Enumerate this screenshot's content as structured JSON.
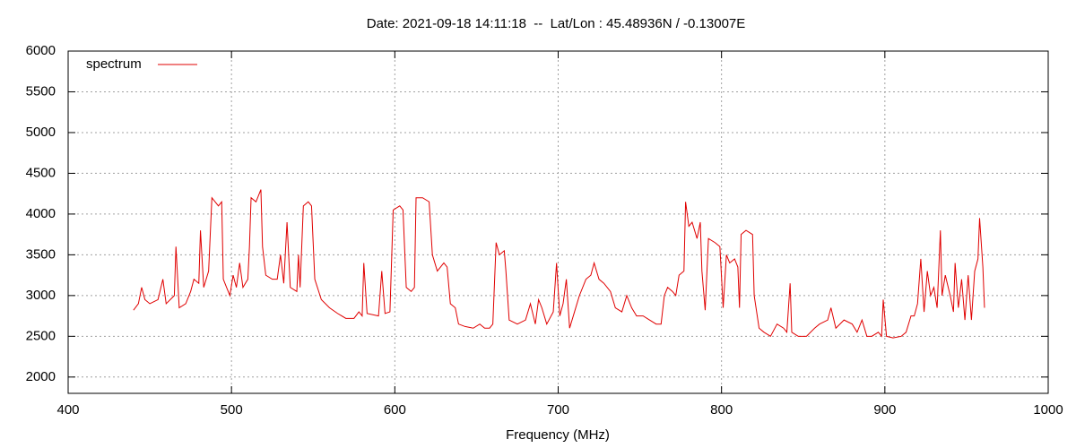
{
  "chart_data": {
    "type": "line",
    "title": "Date: 2021-09-18 14:11:18  --  Lat/Lon : 45.48936N / -0.13007E",
    "x_label": "Frequency (MHz)",
    "xlim": [
      400,
      1000
    ],
    "xticks": [
      400,
      500,
      600,
      700,
      800,
      900,
      1000
    ],
    "ylim": [
      1800,
      6000
    ],
    "yticks": [
      2000,
      2500,
      3000,
      3500,
      4000,
      4500,
      5000,
      5500,
      6000
    ],
    "grid": true,
    "legend": "top-left",
    "series": [
      {
        "name": "spectrum",
        "color": "#e00000",
        "x": [
          440,
          443,
          445,
          447,
          450,
          455,
          458,
          460,
          465,
          466,
          468,
          472,
          475,
          477,
          480,
          481,
          483,
          486,
          488,
          490,
          492,
          494,
          495,
          497,
          499,
          501,
          503,
          505,
          507,
          510,
          511,
          512,
          515,
          518,
          519,
          521,
          525,
          528,
          530,
          532,
          534,
          536,
          540,
          541,
          542,
          544,
          547,
          549,
          551,
          555,
          560,
          565,
          570,
          575,
          578,
          580,
          581,
          583,
          590,
          592,
          594,
          597,
          599,
          603,
          605,
          607,
          610,
          612,
          613,
          617,
          621,
          623,
          626,
          630,
          632,
          634,
          637,
          639,
          643,
          648,
          652,
          655,
          658,
          660,
          662,
          664,
          667,
          668,
          670,
          675,
          680,
          683,
          686,
          688,
          690,
          693,
          697,
          699,
          701,
          703,
          705,
          707,
          710,
          713,
          717,
          720,
          722,
          725,
          728,
          732,
          735,
          739,
          742,
          745,
          748,
          752,
          756,
          760,
          763,
          765,
          767,
          770,
          772,
          774,
          777,
          778,
          780,
          782,
          785,
          787,
          788,
          790,
          792,
          796,
          799,
          801,
          803,
          805,
          808,
          810,
          811,
          812,
          815,
          819,
          820,
          823,
          826,
          830,
          834,
          838,
          840,
          842,
          843,
          847,
          852,
          857,
          860,
          865,
          867,
          870,
          875,
          880,
          883,
          886,
          889,
          892,
          896,
          898,
          899,
          901,
          905,
          910,
          913,
          916,
          918,
          920,
          922,
          924,
          926,
          928,
          930,
          932,
          934,
          935,
          937,
          940,
          942,
          943,
          945,
          947,
          949,
          951,
          953,
          955,
          957,
          958,
          960,
          961
        ],
        "values": [
          2820,
          2900,
          3100,
          2950,
          2900,
          2950,
          3200,
          2900,
          3000,
          3600,
          2850,
          2900,
          3050,
          3200,
          3150,
          3800,
          3100,
          3300,
          4200,
          4150,
          4100,
          4150,
          3200,
          3100,
          3000,
          3250,
          3100,
          3400,
          3100,
          3200,
          3600,
          4200,
          4150,
          4300,
          3600,
          3250,
          3200,
          3200,
          3500,
          3150,
          3900,
          3100,
          3050,
          3500,
          3100,
          4100,
          4150,
          4100,
          3200,
          2950,
          2850,
          2780,
          2720,
          2720,
          2800,
          2750,
          3400,
          2780,
          2750,
          3300,
          2780,
          2800,
          4050,
          4100,
          4050,
          3100,
          3050,
          3100,
          4200,
          4200,
          4150,
          3500,
          3300,
          3400,
          3350,
          2900,
          2850,
          2650,
          2620,
          2600,
          2650,
          2600,
          2600,
          2650,
          3650,
          3500,
          3550,
          3300,
          2700,
          2650,
          2700,
          2900,
          2650,
          2950,
          2850,
          2650,
          2800,
          3400,
          2750,
          2900,
          3200,
          2600,
          2800,
          3000,
          3200,
          3250,
          3400,
          3200,
          3150,
          3050,
          2850,
          2800,
          3000,
          2850,
          2750,
          2750,
          2700,
          2650,
          2650,
          3000,
          3100,
          3050,
          3000,
          3250,
          3300,
          4150,
          3850,
          3900,
          3700,
          3900,
          3300,
          2820,
          3700,
          3650,
          3600,
          2850,
          3500,
          3400,
          3450,
          3350,
          2850,
          3750,
          3800,
          3750,
          3000,
          2600,
          2550,
          2500,
          2650,
          2600,
          2550,
          3150,
          2550,
          2500,
          2500,
          2600,
          2650,
          2700,
          2850,
          2600,
          2700,
          2650,
          2550,
          2700,
          2500,
          2500,
          2550,
          2500,
          2950,
          2500,
          2480,
          2500,
          2550,
          2750,
          2750,
          2900,
          3450,
          2800,
          3300,
          3000,
          3100,
          2850,
          3800,
          3000,
          3250,
          3000,
          2800,
          3400,
          2850,
          3200,
          2700,
          3250,
          2700,
          3300,
          3450,
          3950,
          3350,
          2850
        ]
      }
    ]
  }
}
